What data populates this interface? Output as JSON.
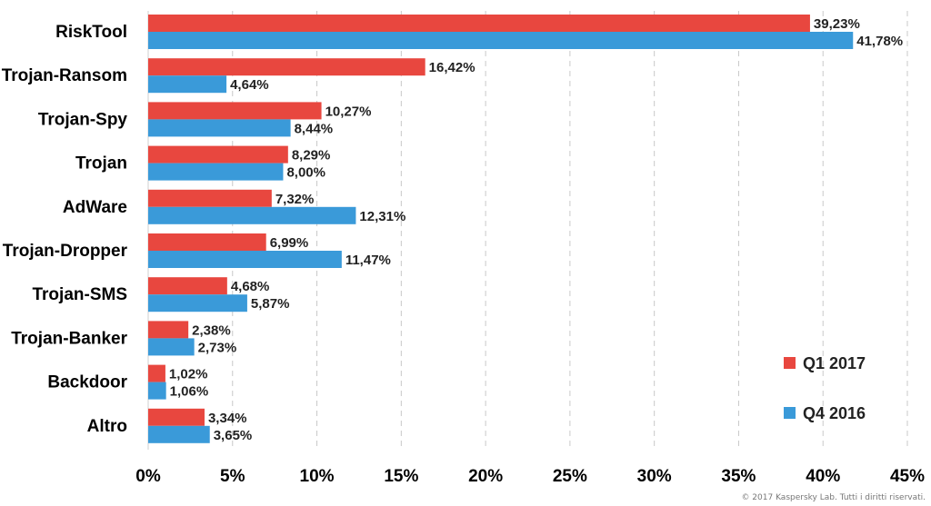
{
  "chart_data": {
    "type": "bar",
    "orientation": "horizontal",
    "categories": [
      "RiskTool",
      "Trojan-Ransom",
      "Trojan-Spy",
      "Trojan",
      "AdWare",
      "Trojan-Dropper",
      "Trojan-SMS",
      "Trojan-Banker",
      "Backdoor",
      "Altro"
    ],
    "series": [
      {
        "name": "Q1 2017",
        "color": "#e8473f",
        "values": [
          39.23,
          16.42,
          10.27,
          8.29,
          7.32,
          6.99,
          4.68,
          2.38,
          1.02,
          3.34
        ],
        "labels": [
          "39,23%",
          "16,42%",
          "10,27%",
          "8,29%",
          "7,32%",
          "6,99%",
          "4,68%",
          "2,38%",
          "1,02%",
          "3,34%"
        ]
      },
      {
        "name": "Q4 2016",
        "color": "#3a9ad9",
        "values": [
          41.78,
          4.64,
          8.44,
          8.0,
          12.31,
          11.47,
          5.87,
          2.73,
          1.06,
          3.65
        ],
        "labels": [
          "41,78%",
          "4,64%",
          "8,44%",
          "8,00%",
          "12,31%",
          "11,47%",
          "5,87%",
          "2,73%",
          "1,06%",
          "3,65%"
        ]
      }
    ],
    "xlim": [
      0,
      45
    ],
    "ticks": [
      0,
      5,
      10,
      15,
      20,
      25,
      30,
      35,
      40,
      45
    ],
    "tick_labels": [
      "0%",
      "5%",
      "10%",
      "15%",
      "20%",
      "25%",
      "30%",
      "35%",
      "40%",
      "45%"
    ],
    "grid": "vertical-dashed",
    "legend": "bottom-right",
    "title": "",
    "xlabel": "",
    "ylabel": ""
  },
  "copyright": "© 2017 Kaspersky Lab. Tutti i diritti riservati."
}
